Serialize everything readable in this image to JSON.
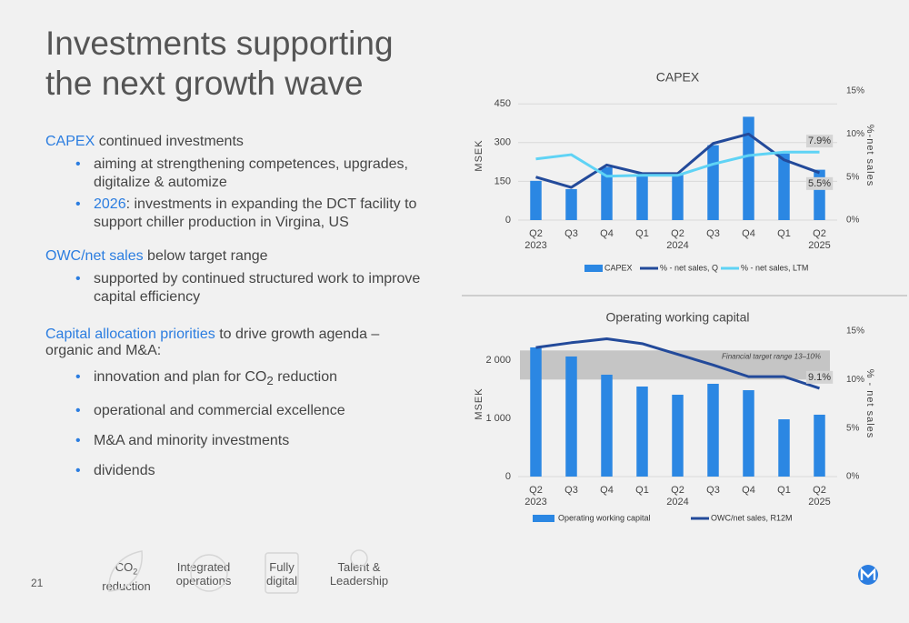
{
  "title": [
    "Investments supporting",
    "the next growth wave"
  ],
  "sections": [
    {
      "highlight": "CAPEX",
      "text": " continued investments",
      "bullets": [
        {
          "text": "aiming at strengthening competences, upgrades, digitalize & automize"
        },
        {
          "highlight": "2026",
          "text": ": investments in expanding the DCT facility to support chiller production in Virgina, US"
        }
      ]
    },
    {
      "highlight": "OWC/net sales",
      "text": " below target range",
      "bullets": [
        {
          "text": "supported by continued structured work to improve capital efficiency"
        }
      ]
    },
    {
      "highlight": "Capital allocation priorities",
      "text": " to drive growth agenda – organic and M&A:",
      "bullets": [
        {
          "text": "innovation and plan for CO",
          "sub": "2",
          "tail": " reduction"
        },
        {
          "text": "operational and commercial excellence"
        },
        {
          "text": "M&A and minority investments"
        },
        {
          "text": "dividends"
        }
      ]
    }
  ],
  "page_number": "21",
  "pillars": [
    {
      "lines": [
        "CO",
        "reduction"
      ],
      "sub": "2"
    },
    {
      "lines": [
        "Integrated",
        "operations"
      ]
    },
    {
      "lines": [
        "Fully",
        "digital"
      ]
    },
    {
      "lines": [
        "Talent &",
        "Leadership"
      ]
    }
  ],
  "chart_data": [
    {
      "type": "combo",
      "title": "CAPEX",
      "categories": [
        "Q2",
        "Q3",
        "Q4",
        "Q1",
        "Q2",
        "Q3",
        "Q4",
        "Q1",
        "Q2"
      ],
      "year_labels": [
        "2023",
        null,
        null,
        null,
        "2024",
        null,
        null,
        null,
        "2025"
      ],
      "ylabel": "MSEK",
      "y2label": "%-net sales",
      "ylim": [
        0,
        500
      ],
      "yticks": [
        0,
        150,
        300,
        450
      ],
      "y2lim": [
        0,
        15
      ],
      "y2ticks": [
        {
          "value": 0,
          "label": "0%"
        },
        {
          "value": 5,
          "label": "5%"
        },
        {
          "value": 10,
          "label": "10%"
        },
        {
          "value": 15,
          "label": "15%"
        }
      ],
      "grid": true,
      "series": [
        {
          "name": "CAPEX",
          "type": "bar",
          "color": "#2b87e3",
          "values": [
            152,
            120,
            205,
            177,
            177,
            290,
            400,
            258,
            195
          ]
        },
        {
          "name": "% - net sales, Q",
          "type": "line",
          "axis": "y2",
          "color": "#234a9a",
          "values": [
            5.0,
            3.8,
            6.4,
            5.4,
            5.4,
            8.9,
            10.0,
            7.0,
            5.5
          ],
          "value_labels": [
            null,
            null,
            null,
            null,
            null,
            null,
            null,
            null,
            "5.5%"
          ]
        },
        {
          "name": "% - net sales, LTM",
          "type": "line",
          "axis": "y2",
          "color": "#5fd3f5",
          "values": [
            7.1,
            7.6,
            5.1,
            5.2,
            5.2,
            6.5,
            7.5,
            7.9,
            7.9
          ],
          "value_labels": [
            null,
            null,
            null,
            null,
            null,
            null,
            null,
            null,
            "7.9%"
          ]
        }
      ]
    },
    {
      "type": "combo",
      "title": "Operating working capital",
      "categories": [
        "Q2",
        "Q3",
        "Q4",
        "Q1",
        "Q2",
        "Q3",
        "Q4",
        "Q1",
        "Q2"
      ],
      "year_labels": [
        "2023",
        null,
        null,
        null,
        "2024",
        null,
        null,
        null,
        "2025"
      ],
      "ylabel": "MSEK",
      "y2label": "% - net sales",
      "ylim": [
        0,
        2500
      ],
      "yticks": [
        0,
        {
          "value": 1000,
          "label": "1 000"
        },
        {
          "value": 2000,
          "label": "2 000"
        }
      ],
      "y2lim": [
        0,
        15
      ],
      "y2ticks": [
        {
          "value": 0,
          "label": "0%"
        },
        {
          "value": 5,
          "label": "5%"
        },
        {
          "value": 10,
          "label": "10%"
        },
        {
          "value": 15,
          "label": "15%"
        }
      ],
      "grid": false,
      "target_band": {
        "label": "Financial target range  13–10%",
        "range": [
          10,
          13
        ]
      },
      "series": [
        {
          "name": "Operating working capital",
          "type": "bar",
          "color": "#2b87e3",
          "values": [
            2219,
            2063,
            1750,
            1547,
            1406,
            1594,
            1484,
            984,
            1063
          ]
        },
        {
          "name": "OWC/net sales, R12M",
          "type": "line",
          "axis": "y2",
          "color": "#234a9a",
          "values": [
            13.3,
            13.8,
            14.2,
            13.7,
            12.6,
            11.5,
            10.3,
            10.3,
            9.1
          ],
          "value_labels": [
            null,
            null,
            null,
            null,
            null,
            null,
            null,
            null,
            "9.1%"
          ]
        }
      ]
    }
  ]
}
